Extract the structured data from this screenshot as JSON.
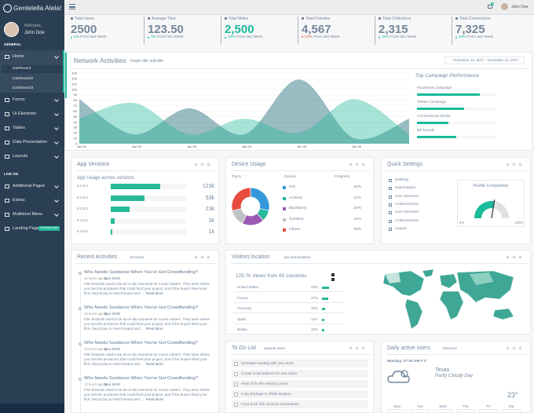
{
  "sidebar": {
    "brand": "Gentelella Alela!",
    "welcome": "Welcome,",
    "user": "John Doe",
    "section_general": "GENERAL",
    "menu_general": [
      "Home",
      "Forms",
      "UI Elements",
      "Tables",
      "Data Presentation",
      "Layouts"
    ],
    "home_sub": [
      "Dashboard",
      "Dashboard2",
      "Dashboard3"
    ],
    "section_live": "LIVE ON",
    "menu_live": [
      "Additional Pages",
      "Extras",
      "Multilevel Menu",
      "Landing Page"
    ],
    "badge": "Coming Soon"
  },
  "topnav": {
    "user": "John Doe",
    "mail_count": 6
  },
  "tiles": [
    {
      "label": "Total Users",
      "value": "2500",
      "change": "4%",
      "change_text": "From last Week",
      "trend": "up"
    },
    {
      "label": "Average Time",
      "value": "123.50",
      "change": "3%",
      "change_text": "From last Week",
      "trend": "up"
    },
    {
      "label": "Total Males",
      "value": "2,500",
      "change": "34%",
      "change_text": "From last Week",
      "trend": "up"
    },
    {
      "label": "Total Females",
      "value": "4,567",
      "change": "12%",
      "change_text": "From last Week",
      "trend": "down"
    },
    {
      "label": "Total Collections",
      "value": "2,315",
      "change": "34%",
      "change_text": "From last Week",
      "trend": "up"
    },
    {
      "label": "Total Connections",
      "value": "7,325",
      "change": "34%",
      "change_text": "From last Week",
      "trend": "up"
    }
  ],
  "network": {
    "title": "Network Activities",
    "subtitle": "Graph title sub-title",
    "date_range": "November 15, 2017 - December 14, 2017",
    "chart": {
      "type": "area",
      "x": [
        "Jan 01",
        "Jan 02",
        "Jan 03",
        "Jan 04",
        "Jan 05",
        "Jan 06",
        null
      ],
      "ylim": [
        0,
        130
      ],
      "yticks": [
        0,
        10,
        20,
        30,
        40,
        50,
        60,
        70,
        80,
        90,
        100,
        110,
        120,
        130
      ],
      "grid": true,
      "series": [
        {
          "color": "#03586A",
          "values": [
            82,
            17,
            65,
            17,
            118,
            10,
            46
          ]
        },
        {
          "color": "#26B99A",
          "values": [
            46,
            75,
            17,
            46,
            20,
            82,
            17
          ]
        }
      ]
    },
    "campaign": {
      "title": "Top Campaign Performance",
      "items": [
        {
          "label": "Facebook Campaign",
          "value": 80
        },
        {
          "label": "Twitter Campaign",
          "value": 60
        },
        {
          "label": "Conventional Media",
          "value": 40
        },
        {
          "label": "Bill boards",
          "value": 50
        }
      ]
    }
  },
  "app_versions": {
    "title": "App Versions",
    "subtitle": "App Usage across versions",
    "rows": [
      {
        "version": "0.1.5.2",
        "bar": 66,
        "count": "123k"
      },
      {
        "version": "0.1.5.4",
        "bar": 45,
        "count": "53k"
      },
      {
        "version": "0.1.5.3",
        "bar": 25,
        "count": "23k"
      },
      {
        "version": "0.1.5.5",
        "bar": 5,
        "count": "3k"
      },
      {
        "version": "0.1.5.6",
        "bar": 2,
        "count": "1k"
      }
    ]
  },
  "device_usage": {
    "title": "Device Usage",
    "col_top": "Top 5",
    "col_device": "Device",
    "col_progress": "Progress",
    "items": [
      {
        "name": "IOS",
        "color": "#3498DB",
        "value": 30,
        "label": "30%"
      },
      {
        "name": "Android",
        "color": "#26B99A",
        "value": 10,
        "label": "10%"
      },
      {
        "name": "Blackberry",
        "color": "#9B59B6",
        "value": 20,
        "label": "20%"
      },
      {
        "name": "Symbian",
        "color": "#BDC3C7",
        "value": 15,
        "label": "15%"
      },
      {
        "name": "Others",
        "color": "#E74C3C",
        "value": 30,
        "label": "30%"
      }
    ]
  },
  "quick_settings": {
    "title": "Quick Settings",
    "items": [
      "Settings",
      "Subscription",
      "Auto Renewal",
      "Achievements",
      "Auto Renewal",
      "Achievements",
      "Logout"
    ],
    "profile_title": "Profile Completion",
    "profile_value": 55,
    "min_label": "0%",
    "max_label": "100%"
  },
  "recent_activities": {
    "title": "Recent Activities",
    "subtitle": "Sessions",
    "items": [
      {
        "title": "Who Needs Sundance When You've Got Crowdfunding?",
        "time": "13 hours ago by",
        "author": "Jane Smith",
        "body": "Film festivals used to be do-or-die moments for movie makers. They were where you met the producers that could fund your project, and if the buyers liked your flick, they'd pay to Fast-forward and …",
        "more": "Read More"
      },
      {
        "title": "Who Needs Sundance When You've Got Crowdfunding?",
        "time": "13 hours ago by",
        "author": "Jane Smith",
        "body": "Film festivals used to be do-or-die moments for movie makers. They were where you met the producers that could fund your project, and if the buyers liked your flick, they'd pay to Fast-forward and …",
        "more": "Read More"
      },
      {
        "title": "Who Needs Sundance When You've Got Crowdfunding?",
        "time": "13 hours ago by",
        "author": "Jane Smith",
        "body": "Film festivals used to be do-or-die moments for movie makers. They were where you met the producers that could fund your project, and if the buyers liked your flick, they'd pay to Fast-forward and …",
        "more": "Read More"
      },
      {
        "title": "Who Needs Sundance When You've Got Crowdfunding?",
        "time": "13 hours ago by",
        "author": "Jane Smith",
        "body": "Film festivals used to be do-or-die moments for movie makers. They were where you met the producers that could fund your project, and if the buyers liked your flick, they'd pay to Fast-forward and …",
        "more": "Read More"
      }
    ]
  },
  "visitors": {
    "title": "Visitors location",
    "subtitle": "geo-presentation",
    "headline": "125.7k Views from 60 countries",
    "rows": [
      {
        "country": "United States",
        "value": 33,
        "label": "33%"
      },
      {
        "country": "France",
        "value": 27,
        "label": "27%"
      },
      {
        "country": "Germany",
        "value": 16,
        "label": "16%"
      },
      {
        "country": "Spain",
        "value": 11,
        "label": "11%"
      },
      {
        "country": "Britain",
        "value": 10,
        "label": "10%"
      }
    ]
  },
  "todo": {
    "title": "To Do List",
    "subtitle": "Sample tasks",
    "items": [
      "Schedule meeting with new client",
      "Create email address for new intern",
      "Have IT fix the network printer",
      "Copy backups to offsite location",
      "Food truck fixie locavors mcsweeney"
    ]
  },
  "daily": {
    "title": "Daily active users",
    "subtitle": "Sessions",
    "datetime": "Monday, 07:30 AM F C",
    "location": "Texas",
    "condition": "Partly Cloudy Day",
    "temp": "23°",
    "days": [
      "Mon",
      "Tue",
      "Wed",
      "Thu",
      "Fri",
      "Sat"
    ]
  }
}
